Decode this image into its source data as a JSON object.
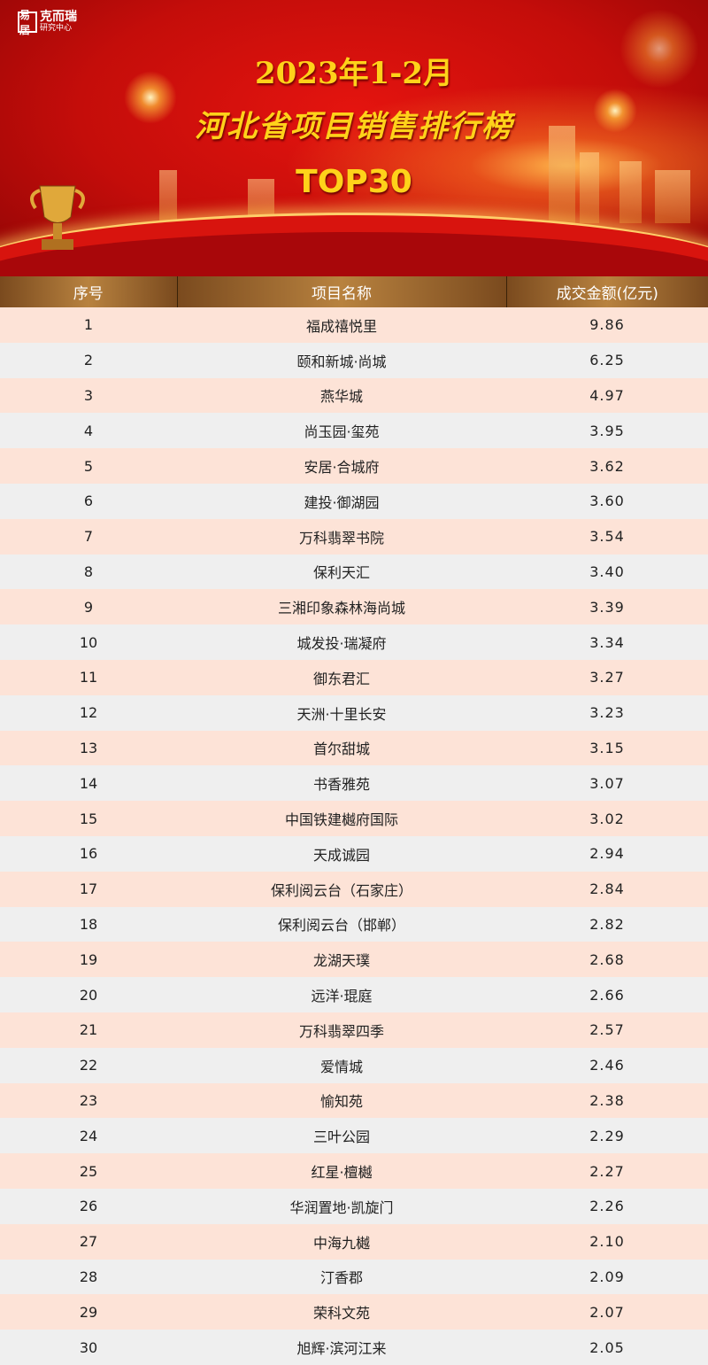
{
  "banner": {
    "logo_name": "克而瑞",
    "logo_sub": "研究中心",
    "logo_mark": "易居",
    "title_line1": "2023年1-2月",
    "title_line2": "河北省项目销售排行榜",
    "title_line3": "TOP30"
  },
  "colors": {
    "header_bg": "#8a5a28",
    "row_odd": "#fde3d7",
    "row_even": "#efefef",
    "title": "#ffd21a",
    "banner": "#c40d0a"
  },
  "table": {
    "headers": [
      "序号",
      "项目名称",
      "成交金额(亿元)"
    ],
    "rows": [
      [
        "1",
        "福成禧悦里",
        "9.86"
      ],
      [
        "2",
        "颐和新城·尚城",
        "6.25"
      ],
      [
        "3",
        "燕华城",
        "4.97"
      ],
      [
        "4",
        "尚玉园·玺苑",
        "3.95"
      ],
      [
        "5",
        "安居·合城府",
        "3.62"
      ],
      [
        "6",
        "建投·御湖园",
        "3.60"
      ],
      [
        "7",
        "万科翡翠书院",
        "3.54"
      ],
      [
        "8",
        "保利天汇",
        "3.40"
      ],
      [
        "9",
        "三湘印象森林海尚城",
        "3.39"
      ],
      [
        "10",
        "城发投·瑞凝府",
        "3.34"
      ],
      [
        "11",
        "御东君汇",
        "3.27"
      ],
      [
        "12",
        "天洲·十里长安",
        "3.23"
      ],
      [
        "13",
        "首尔甜城",
        "3.15"
      ],
      [
        "14",
        "书香雅苑",
        "3.07"
      ],
      [
        "15",
        "中国铁建樾府国际",
        "3.02"
      ],
      [
        "16",
        "天成诚园",
        "2.94"
      ],
      [
        "17",
        "保利阅云台（石家庄）",
        "2.84"
      ],
      [
        "18",
        "保利阅云台（邯郸）",
        "2.82"
      ],
      [
        "19",
        "龙湖天璞",
        "2.68"
      ],
      [
        "20",
        "远洋·琨庭",
        "2.66"
      ],
      [
        "21",
        "万科翡翠四季",
        "2.57"
      ],
      [
        "22",
        "爱情城",
        "2.46"
      ],
      [
        "23",
        "愉知苑",
        "2.38"
      ],
      [
        "24",
        "三叶公园",
        "2.29"
      ],
      [
        "25",
        "红星·檀樾",
        "2.27"
      ],
      [
        "26",
        "华润置地·凯旋门",
        "2.26"
      ],
      [
        "27",
        "中海九樾",
        "2.10"
      ],
      [
        "28",
        "汀香郡",
        "2.09"
      ],
      [
        "29",
        "荣科文苑",
        "2.07"
      ],
      [
        "30",
        "旭辉·滨河江来",
        "2.05"
      ]
    ]
  }
}
